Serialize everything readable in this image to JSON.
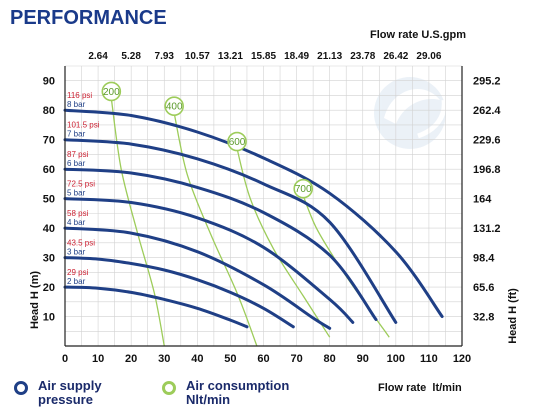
{
  "header": {
    "title": "PERFORMANCE"
  },
  "chart_data": {
    "type": "line",
    "title": "PERFORMANCE",
    "top_axis_title": "Flow rate U.S.gpm",
    "top_ticks": [
      "2.64",
      "5.28",
      "7.93",
      "10.57",
      "13.21",
      "15.85",
      "18.49",
      "21.13",
      "23.78",
      "26.42",
      "29.06"
    ],
    "x_ticks": [
      "0",
      "10",
      "20",
      "30",
      "40",
      "50",
      "60",
      "70",
      "80",
      "90",
      "100",
      "110",
      "120"
    ],
    "y_left_ticks": [
      "10",
      "20",
      "30",
      "40",
      "50",
      "60",
      "70",
      "80",
      "90"
    ],
    "y_right_ticks": [
      "32.8",
      "65.6",
      "98.4",
      "131.2",
      "164",
      "196.8",
      "229.6",
      "262.4",
      "295.2"
    ],
    "y_left_label": "Head H (m)",
    "y_right_label": "Head H (ft)",
    "xlabel": "Flow rate  lt/min",
    "xlim": [
      0,
      120
    ],
    "ylim": [
      0,
      95
    ],
    "grid": true,
    "series": [
      {
        "name": "2 bar",
        "psi": "29 psi",
        "x": [
          0,
          10,
          20,
          30,
          40,
          50,
          55
        ],
        "y": [
          20,
          19.6,
          18.2,
          15.8,
          12.8,
          8.8,
          6.5
        ]
      },
      {
        "name": "3 bar",
        "psi": "43.5 psi",
        "x": [
          0,
          10,
          20,
          30,
          40,
          50,
          60,
          69
        ],
        "y": [
          30,
          29.5,
          28,
          25.8,
          22.5,
          18.2,
          12.8,
          6.5
        ]
      },
      {
        "name": "4 bar",
        "psi": "58 psi",
        "x": [
          0,
          20,
          40,
          60,
          75,
          80
        ],
        "y": [
          40,
          38.3,
          32,
          20.8,
          9.5,
          6
        ]
      },
      {
        "name": "5 bar",
        "psi": "72.5 psi",
        "x": [
          0,
          20,
          40,
          60,
          80,
          87
        ],
        "y": [
          50,
          48.7,
          43.5,
          33.5,
          15.8,
          8
        ]
      },
      {
        "name": "6 bar",
        "psi": "87 psi",
        "x": [
          0,
          20,
          40,
          60,
          80,
          94
        ],
        "y": [
          60,
          58.7,
          53.8,
          45.3,
          30.8,
          9
        ]
      },
      {
        "name": "7 bar",
        "psi": "101.5 psi",
        "x": [
          0,
          20,
          40,
          60,
          80,
          100
        ],
        "y": [
          70,
          68.5,
          63.5,
          55,
          42,
          8
        ]
      },
      {
        "name": "8 bar",
        "psi": "116 psi",
        "x": [
          0,
          20,
          40,
          60,
          80,
          100,
          114
        ],
        "y": [
          80,
          78.2,
          72.6,
          63.8,
          51.8,
          32,
          10
        ]
      }
    ],
    "air_consumption": [
      {
        "label": "200",
        "x": [
          14,
          17,
          22,
          27,
          30
        ],
        "y": [
          84,
          60,
          38,
          18,
          0
        ]
      },
      {
        "label": "400",
        "x": [
          33,
          37,
          44,
          52,
          58
        ],
        "y": [
          79,
          58,
          38,
          18,
          0
        ]
      },
      {
        "label": "600",
        "x": [
          52,
          56,
          63,
          72,
          80
        ],
        "y": [
          67,
          50,
          33,
          17,
          3
        ]
      },
      {
        "label": "700",
        "x": [
          72,
          76,
          83,
          91,
          98
        ],
        "y": [
          51,
          40,
          27,
          14,
          3
        ]
      }
    ],
    "colors": {
      "pressure": "#1f3f86",
      "consumption": "#9dcc5a",
      "title": "#1a3a8a",
      "psi": "#cc2233",
      "grid": "#d2d2d2"
    }
  },
  "legend": {
    "pressure_label_1": "Air supply",
    "pressure_label_2": "pressure",
    "consumption_label_1": "Air consumption",
    "consumption_label_2": "Nlt/min"
  }
}
